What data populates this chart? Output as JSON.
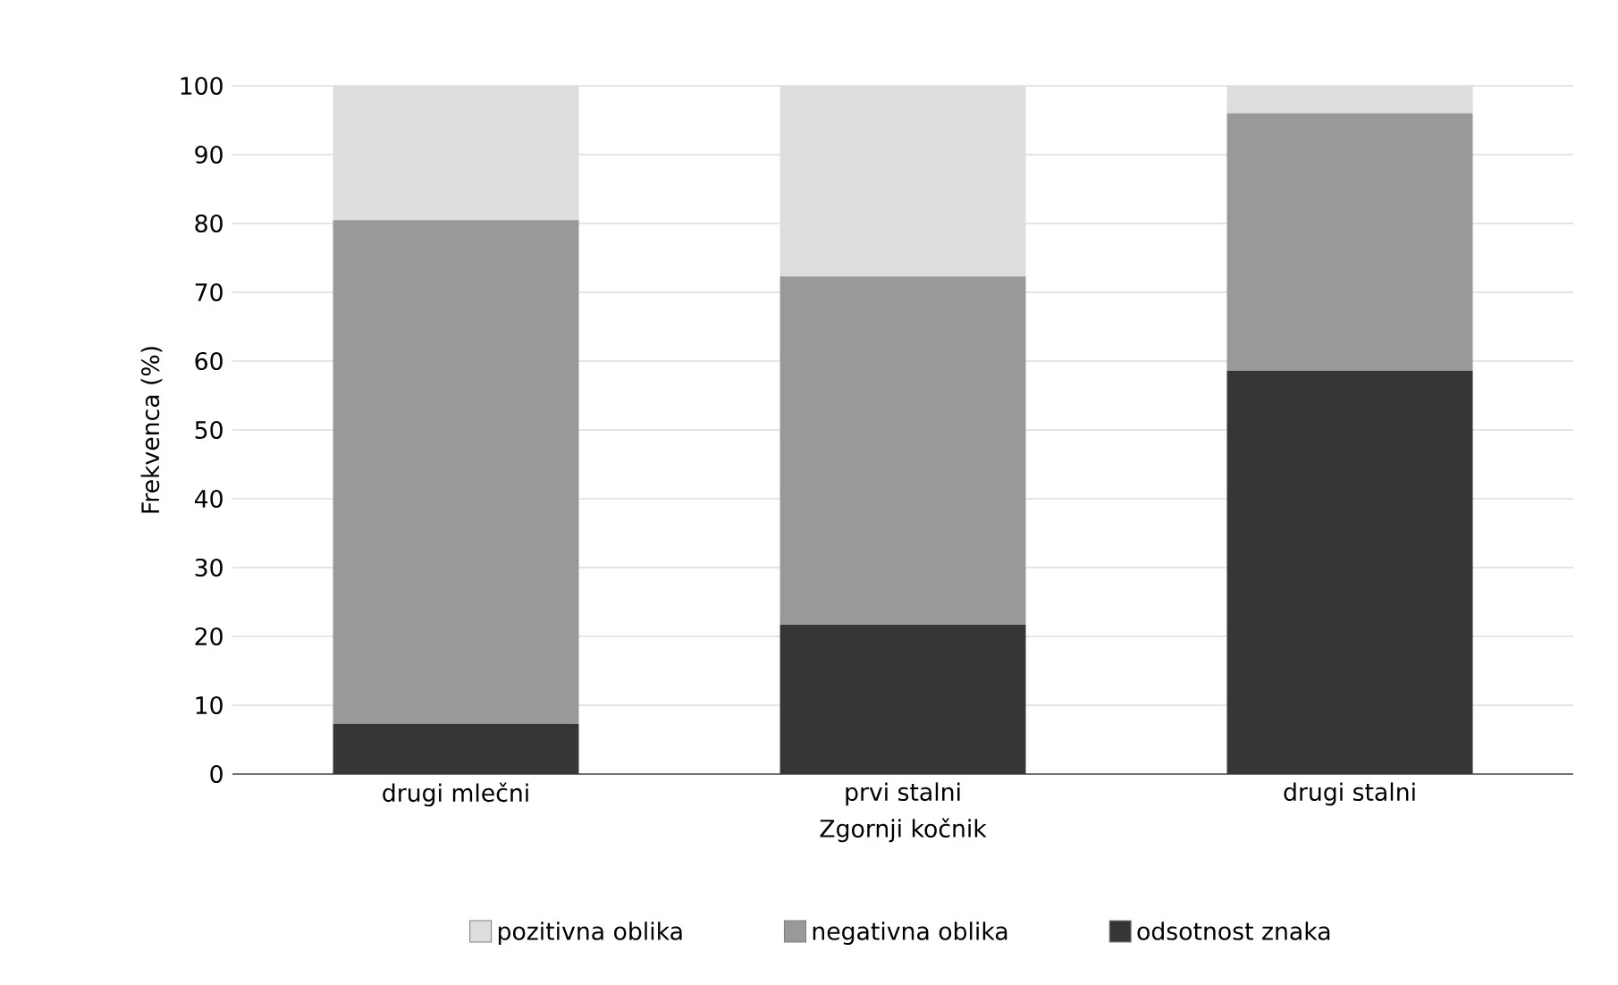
{
  "chart_data": {
    "type": "bar",
    "stacked": true,
    "xlabel": "Zgornji kočnik",
    "ylabel": "Frekvenca (%)",
    "categories": [
      "drugi mlečni",
      "prvi stalni",
      "drugi stalni"
    ],
    "series": [
      {
        "name": "odsotnost znaka",
        "color": "#363636",
        "values": [
          7.3,
          21.7,
          58.6
        ]
      },
      {
        "name": "negativna oblika",
        "color": "#999999",
        "values": [
          73.2,
          50.6,
          37.4
        ]
      },
      {
        "name": "pozitivna oblika",
        "color": "#dddddd",
        "values": [
          19.5,
          27.7,
          4.0
        ]
      }
    ],
    "ylim": [
      0,
      100
    ],
    "yticks": [
      0,
      10,
      20,
      30,
      40,
      50,
      60,
      70,
      80,
      90,
      100
    ],
    "grid": "y",
    "legend": "bottom"
  }
}
